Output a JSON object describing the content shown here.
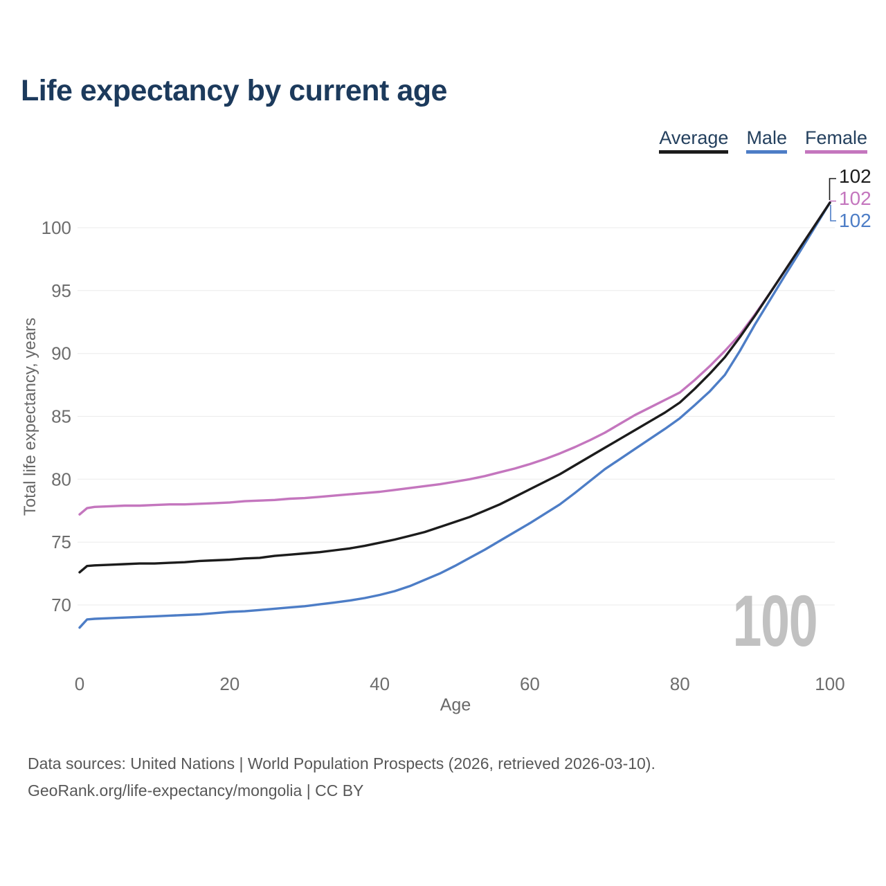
{
  "page": {
    "title": "Life expectancy by current age"
  },
  "legend": {
    "items": [
      {
        "label": "Average",
        "color": "#1c1c1c"
      },
      {
        "label": "Male",
        "color": "#4d7dc6"
      },
      {
        "label": "Female",
        "color": "#c476be"
      }
    ]
  },
  "watermark": {
    "text": "100"
  },
  "footer": {
    "line1": "Data sources: United Nations | World Population Prospects (2026, retrieved 2026-03-10).",
    "line2": "GeoRank.org/life-expectancy/mongolia | CC BY"
  },
  "chart_data": {
    "type": "line",
    "title": "Life expectancy by current age",
    "xlabel": "Age",
    "ylabel": "Total life expectancy, years",
    "x_ticks": [
      0,
      20,
      40,
      60,
      80,
      100
    ],
    "y_ticks": [
      70,
      75,
      80,
      85,
      90,
      95,
      100
    ],
    "xlim": [
      0,
      100
    ],
    "ylim": [
      68,
      102
    ],
    "grid": "horizontal",
    "legend_position": "top-right",
    "series": [
      {
        "name": "Average",
        "color": "#1c1c1c",
        "end_label": "102",
        "points": [
          [
            0,
            72.6
          ],
          [
            1,
            73.1
          ],
          [
            2,
            73.15
          ],
          [
            4,
            73.2
          ],
          [
            6,
            73.25
          ],
          [
            8,
            73.3
          ],
          [
            10,
            73.3
          ],
          [
            12,
            73.35
          ],
          [
            14,
            73.4
          ],
          [
            16,
            73.5
          ],
          [
            18,
            73.55
          ],
          [
            20,
            73.6
          ],
          [
            22,
            73.7
          ],
          [
            24,
            73.75
          ],
          [
            26,
            73.9
          ],
          [
            28,
            74.0
          ],
          [
            30,
            74.1
          ],
          [
            32,
            74.2
          ],
          [
            34,
            74.35
          ],
          [
            36,
            74.5
          ],
          [
            38,
            74.7
          ],
          [
            40,
            74.95
          ],
          [
            42,
            75.2
          ],
          [
            44,
            75.5
          ],
          [
            46,
            75.8
          ],
          [
            48,
            76.2
          ],
          [
            50,
            76.6
          ],
          [
            52,
            77.0
          ],
          [
            54,
            77.5
          ],
          [
            56,
            78.0
          ],
          [
            58,
            78.6
          ],
          [
            60,
            79.2
          ],
          [
            62,
            79.8
          ],
          [
            64,
            80.4
          ],
          [
            66,
            81.1
          ],
          [
            68,
            81.8
          ],
          [
            70,
            82.5
          ],
          [
            72,
            83.2
          ],
          [
            74,
            83.9
          ],
          [
            76,
            84.6
          ],
          [
            78,
            85.3
          ],
          [
            80,
            86.1
          ],
          [
            82,
            87.2
          ],
          [
            84,
            88.4
          ],
          [
            86,
            89.7
          ],
          [
            88,
            91.3
          ],
          [
            90,
            93.0
          ],
          [
            92,
            94.8
          ],
          [
            94,
            96.6
          ],
          [
            96,
            98.4
          ],
          [
            98,
            100.2
          ],
          [
            100,
            102.0
          ]
        ]
      },
      {
        "name": "Male",
        "color": "#4d7dc6",
        "end_label": "102",
        "points": [
          [
            0,
            68.2
          ],
          [
            1,
            68.85
          ],
          [
            2,
            68.9
          ],
          [
            4,
            68.95
          ],
          [
            6,
            69.0
          ],
          [
            8,
            69.05
          ],
          [
            10,
            69.1
          ],
          [
            12,
            69.15
          ],
          [
            14,
            69.2
          ],
          [
            16,
            69.25
          ],
          [
            18,
            69.35
          ],
          [
            20,
            69.45
          ],
          [
            22,
            69.5
          ],
          [
            24,
            69.6
          ],
          [
            26,
            69.7
          ],
          [
            28,
            69.8
          ],
          [
            30,
            69.9
          ],
          [
            32,
            70.05
          ],
          [
            34,
            70.2
          ],
          [
            36,
            70.35
          ],
          [
            38,
            70.55
          ],
          [
            40,
            70.8
          ],
          [
            42,
            71.1
          ],
          [
            44,
            71.5
          ],
          [
            46,
            72.0
          ],
          [
            48,
            72.5
          ],
          [
            50,
            73.1
          ],
          [
            52,
            73.75
          ],
          [
            54,
            74.4
          ],
          [
            56,
            75.1
          ],
          [
            58,
            75.8
          ],
          [
            60,
            76.5
          ],
          [
            62,
            77.25
          ],
          [
            64,
            78.0
          ],
          [
            66,
            78.9
          ],
          [
            68,
            79.85
          ],
          [
            70,
            80.8
          ],
          [
            72,
            81.6
          ],
          [
            74,
            82.4
          ],
          [
            76,
            83.2
          ],
          [
            78,
            84.0
          ],
          [
            80,
            84.85
          ],
          [
            82,
            85.9
          ],
          [
            84,
            87.0
          ],
          [
            86,
            88.3
          ],
          [
            88,
            90.2
          ],
          [
            90,
            92.3
          ],
          [
            92,
            94.25
          ],
          [
            94,
            96.2
          ],
          [
            96,
            98.1
          ],
          [
            98,
            100.05
          ],
          [
            100,
            102.0
          ]
        ]
      },
      {
        "name": "Female",
        "color": "#c476be",
        "end_label": "102",
        "points": [
          [
            0,
            77.2
          ],
          [
            1,
            77.7
          ],
          [
            2,
            77.8
          ],
          [
            4,
            77.85
          ],
          [
            6,
            77.9
          ],
          [
            8,
            77.9
          ],
          [
            10,
            77.95
          ],
          [
            12,
            78.0
          ],
          [
            14,
            78.0
          ],
          [
            16,
            78.05
          ],
          [
            18,
            78.1
          ],
          [
            20,
            78.15
          ],
          [
            22,
            78.25
          ],
          [
            24,
            78.3
          ],
          [
            26,
            78.35
          ],
          [
            28,
            78.45
          ],
          [
            30,
            78.5
          ],
          [
            32,
            78.6
          ],
          [
            34,
            78.7
          ],
          [
            36,
            78.8
          ],
          [
            38,
            78.9
          ],
          [
            40,
            79.0
          ],
          [
            42,
            79.15
          ],
          [
            44,
            79.3
          ],
          [
            46,
            79.45
          ],
          [
            48,
            79.6
          ],
          [
            50,
            79.8
          ],
          [
            52,
            80.0
          ],
          [
            54,
            80.25
          ],
          [
            56,
            80.55
          ],
          [
            58,
            80.85
          ],
          [
            60,
            81.2
          ],
          [
            62,
            81.6
          ],
          [
            64,
            82.05
          ],
          [
            66,
            82.55
          ],
          [
            68,
            83.1
          ],
          [
            70,
            83.7
          ],
          [
            72,
            84.4
          ],
          [
            74,
            85.1
          ],
          [
            76,
            85.7
          ],
          [
            78,
            86.3
          ],
          [
            80,
            86.9
          ],
          [
            82,
            87.9
          ],
          [
            84,
            89.0
          ],
          [
            86,
            90.2
          ],
          [
            88,
            91.5
          ],
          [
            90,
            93.1
          ],
          [
            92,
            94.8
          ],
          [
            94,
            96.6
          ],
          [
            96,
            98.4
          ],
          [
            98,
            100.2
          ],
          [
            100,
            102.0
          ]
        ]
      }
    ]
  }
}
